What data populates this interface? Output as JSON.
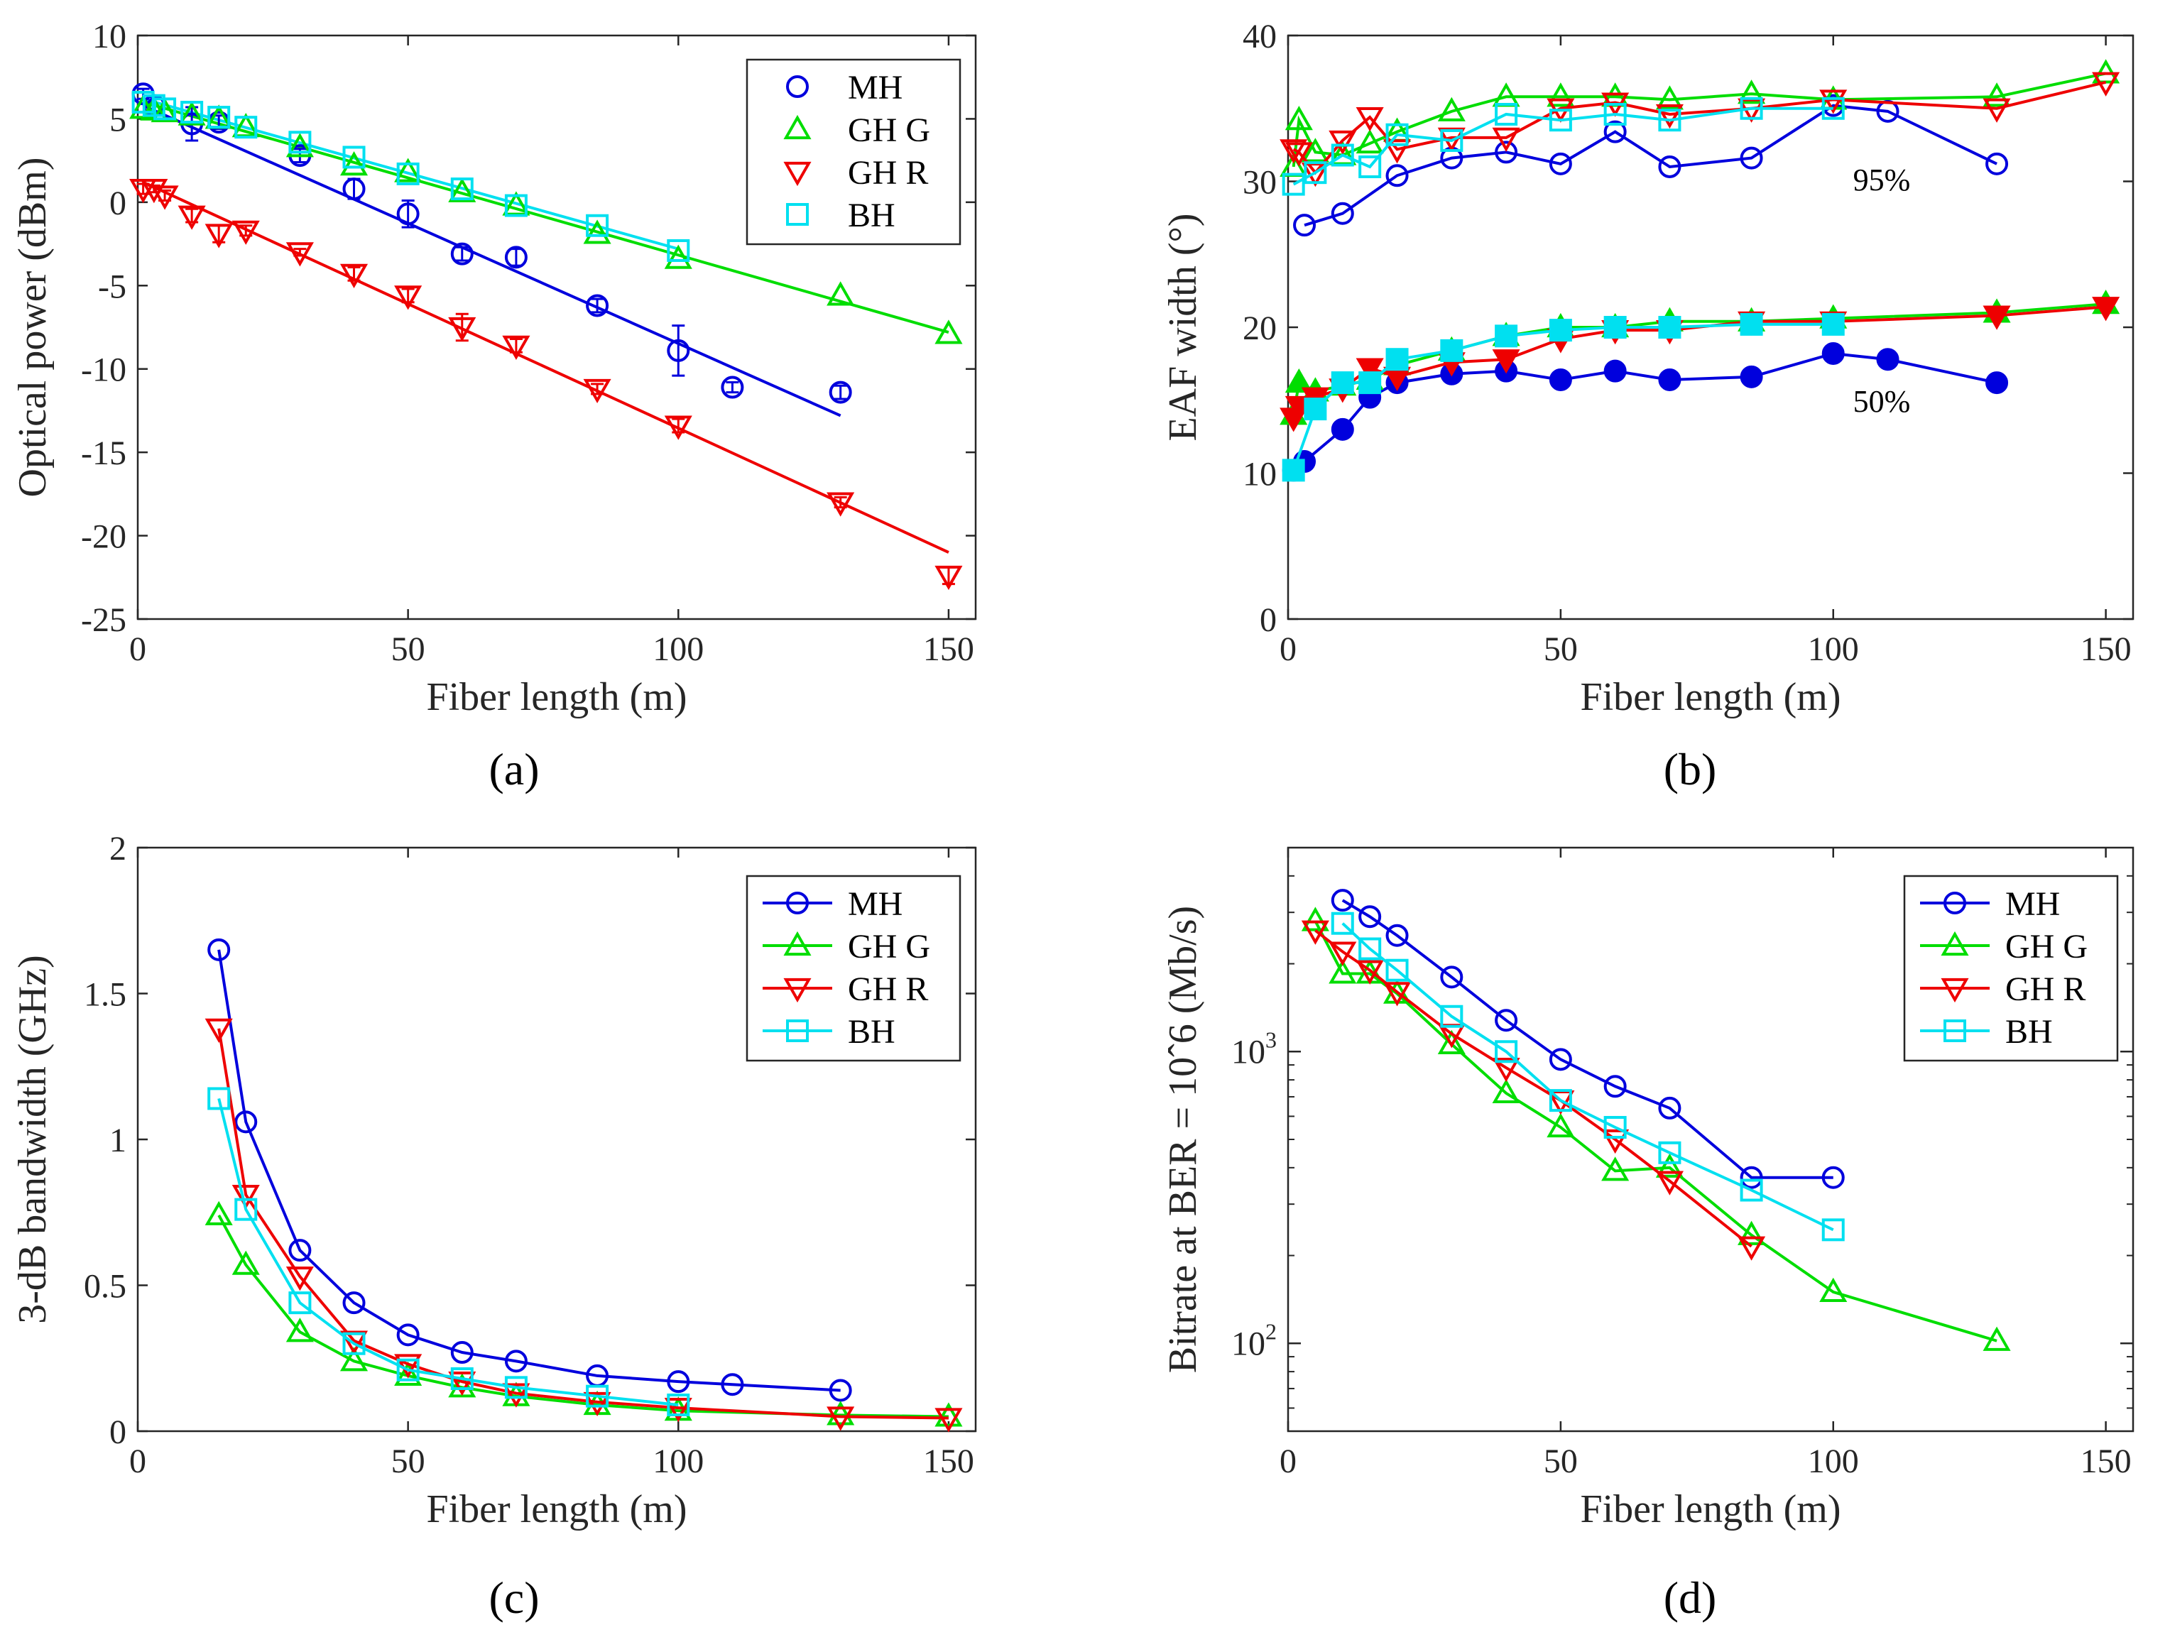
{
  "colors": {
    "MH": "#0000dd",
    "GH G": "#00dd00",
    "GH R": "#ee0000",
    "BH": "#00e0f0"
  },
  "legend": [
    "MH",
    "GH G",
    "GH R",
    "BH"
  ],
  "panel_labels": [
    "(a)",
    "(b)",
    "(c)",
    "(d)"
  ],
  "chart_data": [
    {
      "id": "a",
      "type": "scatter",
      "title": "",
      "xlabel": "Fiber length (m)",
      "ylabel": "Optical power (dBm)",
      "xlim": [
        0,
        155
      ],
      "ylim": [
        -25,
        10
      ],
      "xticks": [
        0,
        50,
        100,
        150
      ],
      "yticks": [
        -25,
        -20,
        -15,
        -10,
        -5,
        0,
        5,
        10
      ],
      "series": [
        {
          "name": "MH",
          "marker": "circle",
          "x": [
            1,
            3,
            10,
            15,
            30,
            40,
            50,
            60,
            70,
            85,
            100,
            110,
            130
          ],
          "y": [
            6.5,
            5.8,
            4.7,
            4.8,
            2.8,
            0.8,
            -0.7,
            -3.1,
            -3.3,
            -6.2,
            -8.9,
            -11.1,
            -11.4
          ],
          "err": [
            0.3,
            0.5,
            1.0,
            0.4,
            0.4,
            0.6,
            0.8,
            0.4,
            0.5,
            0.4,
            1.5,
            0.3,
            0.4
          ],
          "fit": [
            [
              1,
              5.8
            ],
            [
              130,
              -12.8
            ]
          ]
        },
        {
          "name": "GH G",
          "marker": "triangle-up",
          "x": [
            1,
            3,
            5,
            10,
            15,
            20,
            30,
            40,
            50,
            60,
            70,
            85,
            100,
            130,
            150
          ],
          "y": [
            5.6,
            5.5,
            5.4,
            5.2,
            5.0,
            4.5,
            3.3,
            2.2,
            1.8,
            0.6,
            -0.2,
            -1.9,
            -3.4,
            -5.6,
            -7.9
          ],
          "fit": [
            [
              1,
              6.0
            ],
            [
              150,
              -7.8
            ]
          ]
        },
        {
          "name": "GH R",
          "marker": "triangle-down",
          "x": [
            1,
            3,
            5,
            10,
            15,
            20,
            30,
            40,
            50,
            60,
            70,
            85,
            100,
            130,
            150
          ],
          "y": [
            0.8,
            0.8,
            0.4,
            -0.8,
            -1.9,
            -1.7,
            -3.0,
            -4.3,
            -5.6,
            -7.5,
            -8.6,
            -11.2,
            -13.4,
            -18.0,
            -22.4
          ],
          "err": [
            0.3,
            0.2,
            0.3,
            0.4,
            0.5,
            0.3,
            0.2,
            0.4,
            0.4,
            0.8,
            0.4,
            0.3,
            0.4,
            0.3,
            0.5
          ],
          "fit": [
            [
              1,
              1.2
            ],
            [
              150,
              -21.0
            ]
          ]
        },
        {
          "name": "BH",
          "marker": "square",
          "x": [
            1,
            3,
            5,
            10,
            15,
            20,
            30,
            40,
            50,
            60,
            70,
            85,
            100
          ],
          "y": [
            6.0,
            5.8,
            5.6,
            5.4,
            5.1,
            4.5,
            3.6,
            2.7,
            1.7,
            0.8,
            -0.2,
            -1.4,
            -2.9
          ],
          "fit": [
            [
              1,
              6.2
            ],
            [
              100,
              -2.8
            ]
          ]
        }
      ]
    },
    {
      "id": "b",
      "type": "line",
      "xlabel": "Fiber length (m)",
      "ylabel": "EAF width (°)",
      "xlim": [
        0,
        155
      ],
      "ylim": [
        0,
        40
      ],
      "xticks": [
        0,
        50,
        100,
        150
      ],
      "yticks": [
        0,
        10,
        20,
        30,
        40
      ],
      "annotations": [
        "95%",
        "50%"
      ],
      "series": [
        {
          "name": "MH 95%",
          "group": "MH",
          "marker": "circle",
          "filled": false,
          "x": [
            3,
            10,
            20,
            30,
            40,
            50,
            60,
            70,
            85,
            100,
            110,
            130
          ],
          "y": [
            27.0,
            27.8,
            30.4,
            31.6,
            32.0,
            31.2,
            33.4,
            31.0,
            31.6,
            35.2,
            34.8,
            31.2
          ]
        },
        {
          "name": "GH G 95%",
          "group": "GH G",
          "marker": "triangle-up",
          "filled": false,
          "x": [
            1,
            2,
            5,
            10,
            15,
            20,
            30,
            40,
            50,
            60,
            70,
            85,
            100,
            130,
            150
          ],
          "y": [
            31.0,
            34.2,
            32.0,
            31.8,
            32.6,
            33.4,
            34.8,
            35.8,
            35.8,
            35.8,
            35.6,
            36.0,
            35.6,
            35.8,
            37.4
          ]
        },
        {
          "name": "GH R 95%",
          "group": "GH R",
          "marker": "triangle-down",
          "filled": false,
          "x": [
            1,
            2,
            5,
            10,
            15,
            20,
            30,
            40,
            50,
            60,
            70,
            85,
            100,
            130,
            150
          ],
          "y": [
            32.2,
            32.0,
            30.6,
            32.8,
            34.4,
            32.2,
            33.0,
            33.0,
            35.0,
            35.4,
            34.6,
            35.0,
            35.6,
            35.0,
            36.8
          ]
        },
        {
          "name": "BH 95%",
          "group": "BH",
          "marker": "square",
          "filled": false,
          "x": [
            1,
            5,
            10,
            15,
            20,
            30,
            40,
            50,
            60,
            70,
            85,
            100
          ],
          "y": [
            29.8,
            30.6,
            31.8,
            31.0,
            33.2,
            32.8,
            34.6,
            34.2,
            34.6,
            34.2,
            35.0,
            35.0
          ]
        },
        {
          "name": "MH 50%",
          "group": "MH",
          "marker": "circle",
          "filled": true,
          "x": [
            1,
            3,
            10,
            15,
            20,
            30,
            40,
            50,
            60,
            70,
            85,
            100,
            110,
            130
          ],
          "y": [
            10.2,
            10.8,
            13.0,
            15.2,
            16.2,
            16.8,
            17.0,
            16.4,
            17.0,
            16.4,
            16.6,
            18.2,
            17.8,
            16.2
          ]
        },
        {
          "name": "GH G 50%",
          "group": "GH G",
          "marker": "triangle-up",
          "filled": true,
          "x": [
            1,
            2,
            5,
            10,
            15,
            20,
            30,
            40,
            50,
            60,
            70,
            85,
            100,
            130,
            150
          ],
          "y": [
            14.0,
            16.2,
            15.6,
            16.0,
            16.4,
            17.4,
            18.4,
            19.4,
            20.0,
            20.0,
            20.4,
            20.4,
            20.6,
            21.0,
            21.6
          ]
        },
        {
          "name": "GH R 50%",
          "group": "GH R",
          "marker": "triangle-down",
          "filled": true,
          "x": [
            1,
            2,
            5,
            10,
            15,
            20,
            30,
            40,
            50,
            60,
            70,
            85,
            100,
            130,
            150
          ],
          "y": [
            13.8,
            14.6,
            15.2,
            15.8,
            17.2,
            16.6,
            17.6,
            17.8,
            19.2,
            19.8,
            19.8,
            20.4,
            20.4,
            20.8,
            21.4
          ]
        },
        {
          "name": "BH 50%",
          "group": "BH",
          "marker": "square",
          "filled": true,
          "x": [
            1,
            5,
            10,
            15,
            20,
            30,
            40,
            50,
            60,
            70,
            85,
            100
          ],
          "y": [
            10.2,
            14.4,
            16.2,
            16.2,
            17.8,
            18.4,
            19.4,
            19.8,
            20.0,
            20.0,
            20.2,
            20.2
          ]
        }
      ]
    },
    {
      "id": "c",
      "type": "line",
      "xlabel": "Fiber length (m)",
      "ylabel": "3-dB bandwidth (GHz)",
      "xlim": [
        0,
        155
      ],
      "ylim": [
        0,
        2
      ],
      "xticks": [
        0,
        50,
        100,
        150
      ],
      "yticks": [
        0,
        0.5,
        1,
        1.5,
        2
      ],
      "ytick_labels": [
        "0",
        "0.5",
        "1",
        "1.5",
        "2"
      ],
      "series": [
        {
          "name": "MH",
          "marker": "circle",
          "x": [
            15,
            20,
            30,
            40,
            50,
            60,
            70,
            85,
            100,
            110,
            130
          ],
          "y": [
            1.65,
            1.06,
            0.62,
            0.44,
            0.33,
            0.27,
            0.24,
            0.19,
            0.17,
            0.16,
            0.14
          ]
        },
        {
          "name": "GH G",
          "marker": "triangle-up",
          "x": [
            15,
            20,
            30,
            40,
            50,
            60,
            70,
            85,
            100,
            130,
            150
          ],
          "y": [
            0.74,
            0.57,
            0.34,
            0.24,
            0.19,
            0.15,
            0.12,
            0.09,
            0.07,
            0.055,
            0.05
          ]
        },
        {
          "name": "GH R",
          "marker": "triangle-down",
          "x": [
            15,
            20,
            30,
            40,
            50,
            60,
            70,
            85,
            100,
            130,
            150
          ],
          "y": [
            1.38,
            0.81,
            0.53,
            0.31,
            0.23,
            0.17,
            0.13,
            0.1,
            0.08,
            0.05,
            0.045
          ]
        },
        {
          "name": "BH",
          "marker": "square",
          "x": [
            15,
            20,
            30,
            40,
            50,
            60,
            70,
            85,
            100
          ],
          "y": [
            1.14,
            0.76,
            0.44,
            0.3,
            0.21,
            0.18,
            0.15,
            0.12,
            0.09
          ]
        }
      ]
    },
    {
      "id": "d",
      "type": "line",
      "yscale": "log",
      "xlabel": "Fiber length (m)",
      "ylabel": "Bitrate at BER = 10ˆ6 (Mb/s)",
      "xlim": [
        0,
        155
      ],
      "ylim": [
        50,
        5000
      ],
      "xticks": [
        0,
        50,
        100,
        150
      ],
      "yticks_major": [
        {
          "base": "10",
          "exp": "2",
          "value": 100
        },
        {
          "base": "10",
          "exp": "3",
          "value": 1000
        }
      ],
      "series": [
        {
          "name": "MH",
          "marker": "circle",
          "x": [
            10,
            15,
            20,
            30,
            40,
            50,
            60,
            70,
            85,
            100
          ],
          "y": [
            3300,
            2900,
            2500,
            1800,
            1280,
            940,
            760,
            640,
            370,
            370
          ]
        },
        {
          "name": "GH G",
          "marker": "triangle-up",
          "x": [
            5,
            10,
            15,
            20,
            30,
            40,
            50,
            60,
            70,
            85,
            100,
            130
          ],
          "y": [
            2800,
            1850,
            1850,
            1580,
            1060,
            720,
            550,
            390,
            400,
            235,
            150,
            102
          ]
        },
        {
          "name": "GH R",
          "marker": "triangle-down",
          "x": [
            5,
            10,
            15,
            20,
            30,
            40,
            50,
            60,
            70,
            85
          ],
          "y": [
            2600,
            2200,
            1900,
            1600,
            1150,
            880,
            680,
            500,
            360,
            215
          ]
        },
        {
          "name": "BH",
          "marker": "square",
          "x": [
            10,
            15,
            20,
            30,
            40,
            50,
            60,
            70,
            85,
            100
          ],
          "y": [
            2750,
            2250,
            1900,
            1320,
            1000,
            680,
            550,
            450,
            335,
            245
          ]
        }
      ]
    }
  ]
}
